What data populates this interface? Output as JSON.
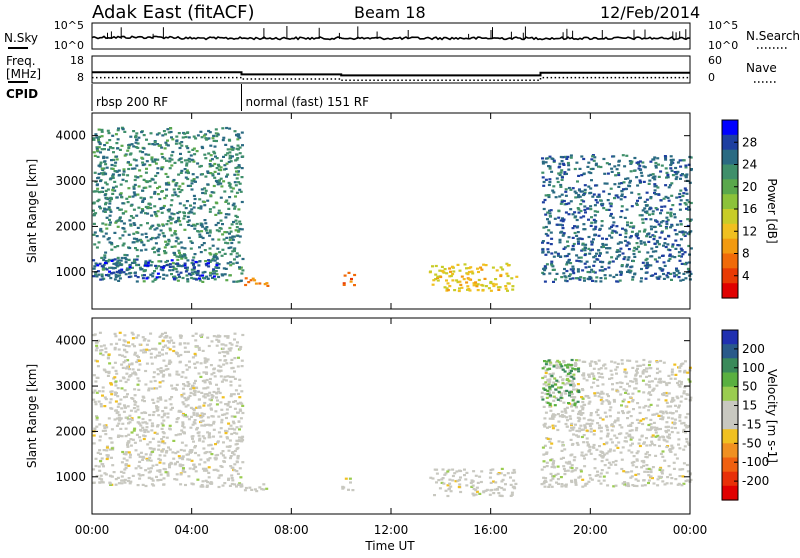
{
  "header": {
    "station": "Adak East (fitACF)",
    "beam": "Beam 18",
    "date": "12/Feb/2014"
  },
  "noise_panel": {
    "left_label": "N.Sky",
    "right_label": "N.Search",
    "left_ticks": [
      "10^5",
      "10^0"
    ],
    "right_ticks": [
      "10^5",
      "10^0"
    ]
  },
  "freq_panel": {
    "left_label_line1": "Freq.",
    "left_label_line2": "[MHz]",
    "left_ticks": [
      "18",
      "8"
    ],
    "right_ticks": [
      "60",
      "0"
    ],
    "right_label": "Nave",
    "freq_line": [
      {
        "x": 0.0,
        "y": 12.0
      },
      {
        "x": 6.0,
        "y": 12.0
      },
      {
        "x": 6.0,
        "y": 11.2
      },
      {
        "x": 10.0,
        "y": 11.2
      },
      {
        "x": 10.0,
        "y": 10.8
      },
      {
        "x": 18.0,
        "y": 10.8
      },
      {
        "x": 18.0,
        "y": 11.8
      },
      {
        "x": 24.0,
        "y": 11.8
      }
    ],
    "nave_line": [
      {
        "x": 0.0,
        "y": 12
      },
      {
        "x": 6.0,
        "y": 12
      },
      {
        "x": 6.0,
        "y": 9
      },
      {
        "x": 10.0,
        "y": 9
      },
      {
        "x": 10.0,
        "y": 6
      },
      {
        "x": 18.0,
        "y": 6
      },
      {
        "x": 18.0,
        "y": 12
      },
      {
        "x": 24.0,
        "y": 12
      }
    ]
  },
  "cpid": {
    "label": "CPID",
    "modes": [
      {
        "start": 0,
        "end": 6,
        "name": "rbsp 200 RF"
      },
      {
        "start": 6,
        "end": 24,
        "name": "normal (fast) 151 RF"
      }
    ]
  },
  "axes": {
    "x_ticks": [
      "00:00",
      "04:00",
      "08:00",
      "12:00",
      "16:00",
      "20:00",
      "00:00"
    ],
    "x_tick_hours": [
      0,
      4,
      8,
      12,
      16,
      20,
      24
    ],
    "x_label": "Time UT",
    "y_label": "Slant Range [km]",
    "y_ticks": [
      "1000",
      "2000",
      "3000",
      "4000"
    ],
    "y_tick_values": [
      1000,
      2000,
      3000,
      4000
    ]
  },
  "power_colorbar": {
    "label": "Power [dB]",
    "ticks": [
      "4",
      "8",
      "12",
      "16",
      "20",
      "24",
      "28"
    ],
    "colors": [
      "#0000ff",
      "#1e3fa0",
      "#2a6a82",
      "#3f8f6a",
      "#5aa84c",
      "#8cc23a",
      "#c8cc28",
      "#f0c020",
      "#f29a10",
      "#f06a08",
      "#e83a04",
      "#e00000"
    ]
  },
  "velocity_colorbar": {
    "label_line": "Velocity [m s-1]",
    "ticks": [
      "200",
      "100",
      "50",
      "15",
      "-15",
      "-50",
      "-100",
      "-200"
    ],
    "colors": [
      "#2030b0",
      "#2a5a8a",
      "#3a8a5a",
      "#5ab040",
      "#9acc50",
      "#c8c8c0",
      "#c8c8c0",
      "#f0c020",
      "#f09020",
      "#f06010",
      "#e83008",
      "#e00000"
    ]
  },
  "chart_data": [
    {
      "type": "heatmap",
      "title": "",
      "xlabel": "Time UT",
      "ylabel": "Slant Range [km]",
      "quantity": "Power [dB]",
      "xlim": [
        0,
        24
      ],
      "ylim": [
        180,
        4500
      ],
      "clim": [
        0,
        30
      ],
      "regions": [
        {
          "t0": 0.0,
          "t1": 6.0,
          "r_lo": 800,
          "r_hi": 4200,
          "value": 22
        },
        {
          "t0": 0.0,
          "t1": 5.0,
          "r_lo": 850,
          "r_hi": 1300,
          "value": 26
        },
        {
          "t0": 6.0,
          "t1": 7.0,
          "r_lo": 700,
          "r_hi": 900,
          "value": 8
        },
        {
          "t0": 10.0,
          "t1": 10.5,
          "r_lo": 700,
          "r_hi": 1000,
          "value": 6
        },
        {
          "t0": 13.5,
          "t1": 17.0,
          "r_lo": 600,
          "r_hi": 1200,
          "value": 12
        },
        {
          "t0": 18.0,
          "t1": 24.0,
          "r_lo": 800,
          "r_hi": 3600,
          "value": 24
        }
      ]
    },
    {
      "type": "heatmap",
      "title": "",
      "xlabel": "Time UT",
      "ylabel": "Slant Range [km]",
      "quantity": "Velocity [m s-1]",
      "xlim": [
        0,
        24
      ],
      "ylim": [
        180,
        4500
      ],
      "clim": [
        -200,
        200
      ],
      "regions": [
        {
          "t0": 0.0,
          "t1": 6.0,
          "r_lo": 800,
          "r_hi": 4200,
          "value": 0
        },
        {
          "t0": 6.0,
          "t1": 7.0,
          "r_lo": 700,
          "r_hi": 900,
          "value": 0
        },
        {
          "t0": 10.0,
          "t1": 10.5,
          "r_lo": 700,
          "r_hi": 1000,
          "value": 0
        },
        {
          "t0": 13.5,
          "t1": 17.0,
          "r_lo": 600,
          "r_hi": 1200,
          "value": 0
        },
        {
          "t0": 18.0,
          "t1": 24.0,
          "r_lo": 800,
          "r_hi": 3600,
          "value": 0
        },
        {
          "t0": 18.0,
          "t1": 19.5,
          "r_lo": 2600,
          "r_hi": 3600,
          "value": 80
        }
      ]
    }
  ]
}
